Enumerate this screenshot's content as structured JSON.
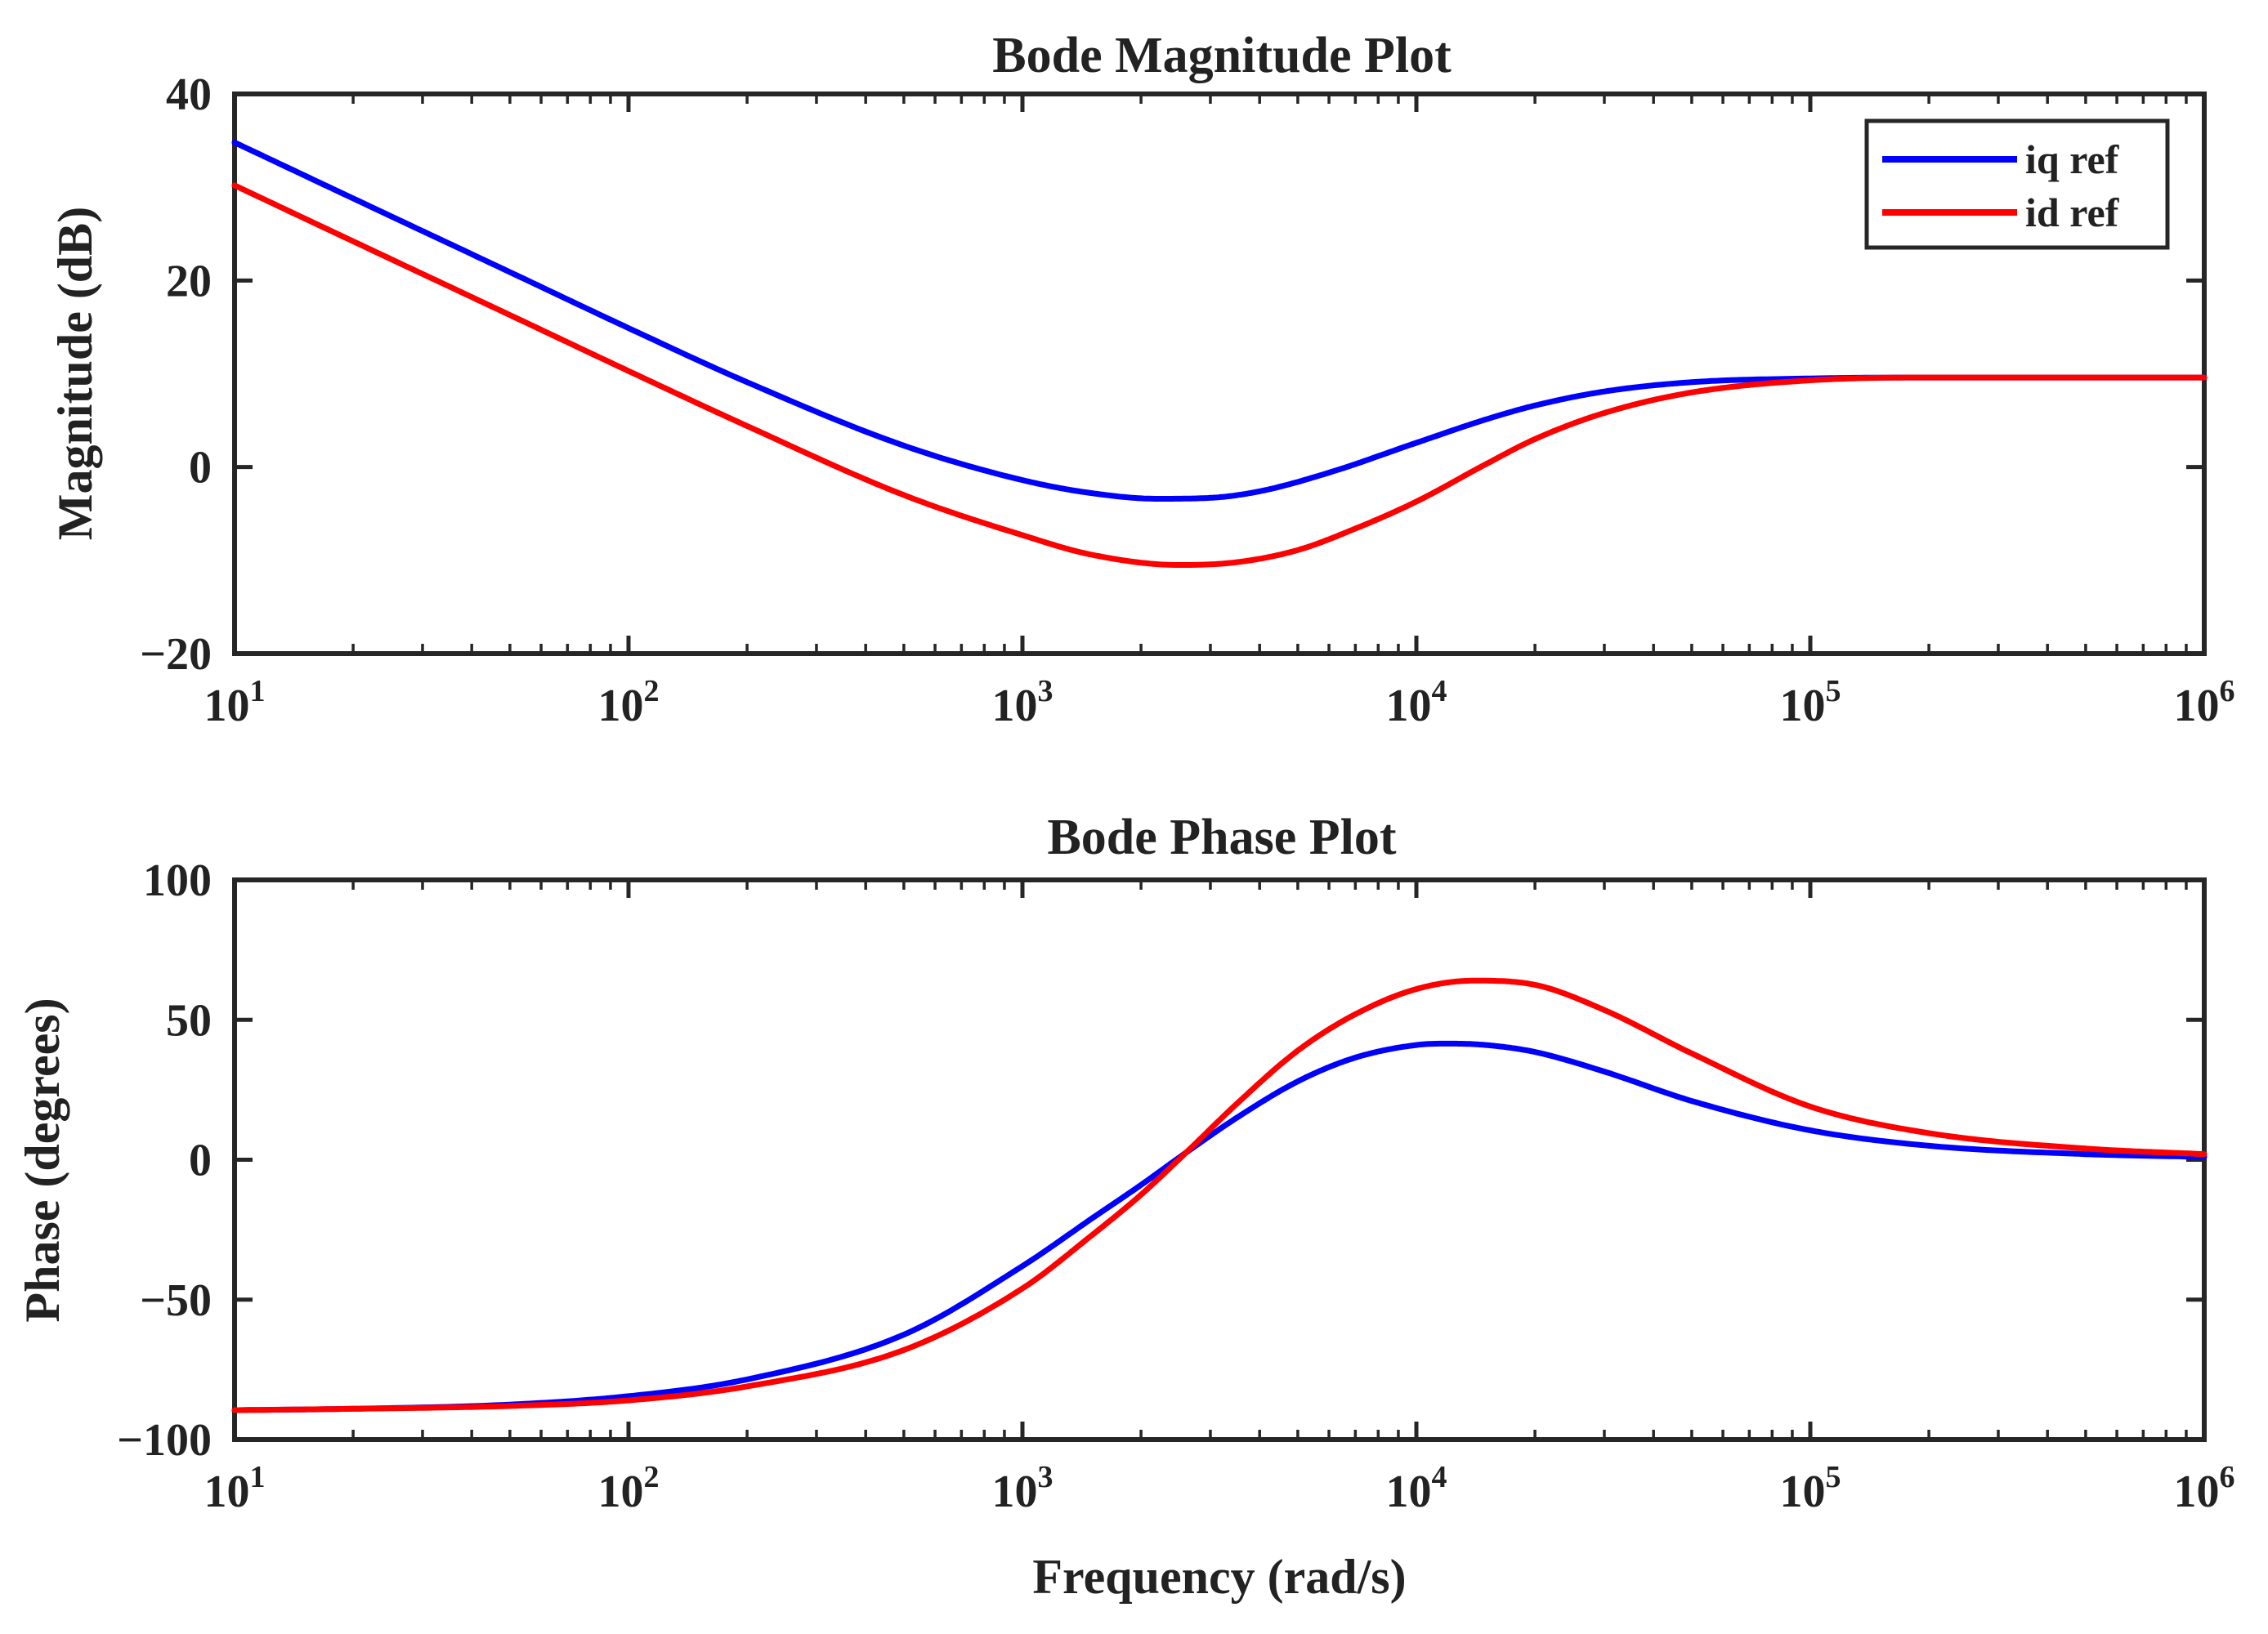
{
  "chart_data": [
    {
      "type": "line",
      "title": "Bode Magnitude Plot",
      "xlabel": "",
      "ylabel": "Magnitude (dB)",
      "xscale": "log",
      "xlim": [
        10,
        1000000
      ],
      "ylim": [
        -20,
        40
      ],
      "grid": false,
      "x_ticks": [
        {
          "base": "10",
          "exp": "1"
        },
        {
          "base": "10",
          "exp": "2"
        },
        {
          "base": "10",
          "exp": "3"
        },
        {
          "base": "10",
          "exp": "4"
        },
        {
          "base": "10",
          "exp": "5"
        },
        {
          "base": "10",
          "exp": "6"
        }
      ],
      "y_ticks": [
        "40",
        "20",
        "0",
        "−20"
      ],
      "y_tick_values": [
        40,
        20,
        0,
        -20
      ],
      "legend": {
        "position": "top-right",
        "entries": [
          "iq ref",
          "id ref"
        ]
      },
      "series": [
        {
          "name": "iq ref",
          "color": "#0000ff",
          "x": [
            10,
            20,
            50,
            100,
            200,
            500,
            1000,
            1500,
            2200,
            3000,
            4000,
            6000,
            10000,
            15000,
            20000,
            30000,
            50000,
            100000,
            200000,
            1000000
          ],
          "values": [
            34.8,
            28.8,
            20.9,
            14.9,
            9.1,
            2.3,
            -1.4,
            -2.8,
            -3.4,
            -3.3,
            -2.6,
            -0.6,
            2.6,
            5.1,
            6.6,
            8.1,
            9.1,
            9.5,
            9.6,
            9.6
          ]
        },
        {
          "name": "id ref",
          "color": "#ff0000",
          "x": [
            10,
            20,
            50,
            100,
            200,
            500,
            1000,
            1500,
            2500,
            3500,
            5000,
            7000,
            10000,
            15000,
            20000,
            30000,
            50000,
            100000,
            200000,
            1000000
          ],
          "values": [
            30.2,
            24.2,
            16.3,
            10.3,
            4.4,
            -3.0,
            -7.3,
            -9.4,
            -10.5,
            -10.2,
            -8.9,
            -6.6,
            -3.7,
            0.3,
            3.0,
            5.8,
            8.0,
            9.3,
            9.6,
            9.6
          ]
        }
      ]
    },
    {
      "type": "line",
      "title": "Bode Phase Plot",
      "xlabel": "Frequency (rad/s)",
      "ylabel": "Phase (degrees)",
      "xscale": "log",
      "xlim": [
        10,
        1000000
      ],
      "ylim": [
        -100,
        100
      ],
      "grid": false,
      "x_ticks": [
        {
          "base": "10",
          "exp": "1"
        },
        {
          "base": "10",
          "exp": "2"
        },
        {
          "base": "10",
          "exp": "3"
        },
        {
          "base": "10",
          "exp": "4"
        },
        {
          "base": "10",
          "exp": "5"
        },
        {
          "base": "10",
          "exp": "6"
        }
      ],
      "y_ticks": [
        "100",
        "50",
        "0",
        "−50",
        "−100"
      ],
      "y_tick_values": [
        100,
        50,
        0,
        -50,
        -100
      ],
      "series": [
        {
          "name": "iq ref",
          "color": "#0000ff",
          "x": [
            10,
            20,
            50,
            100,
            200,
            500,
            1000,
            1500,
            2000,
            2600,
            3500,
            5000,
            7000,
            10000,
            12000,
            15000,
            20000,
            30000,
            50000,
            100000,
            200000,
            500000,
            1000000
          ],
          "values": [
            -89.5,
            -89.0,
            -87.5,
            -84.5,
            -78.5,
            -62.5,
            -38.0,
            -21.0,
            -9.0,
            2.5,
            15.0,
            28.0,
            36.5,
            41.0,
            41.5,
            41.0,
            38.5,
            31.5,
            21.0,
            10.5,
            5.0,
            2.0,
            1.0
          ]
        },
        {
          "name": "id ref",
          "color": "#ff0000",
          "x": [
            10,
            20,
            50,
            100,
            200,
            500,
            1000,
            1500,
            2000,
            2600,
            3500,
            5000,
            7000,
            10000,
            14000,
            20000,
            30000,
            50000,
            100000,
            200000,
            500000,
            1000000
          ],
          "values": [
            -89.5,
            -89.0,
            -88.0,
            -86.0,
            -81.0,
            -68.0,
            -46.0,
            -27.0,
            -12.5,
            2.5,
            20.0,
            39.0,
            52.0,
            61.0,
            64.0,
            62.5,
            53.5,
            38.0,
            19.0,
            9.5,
            4.0,
            2.0
          ]
        }
      ]
    }
  ]
}
